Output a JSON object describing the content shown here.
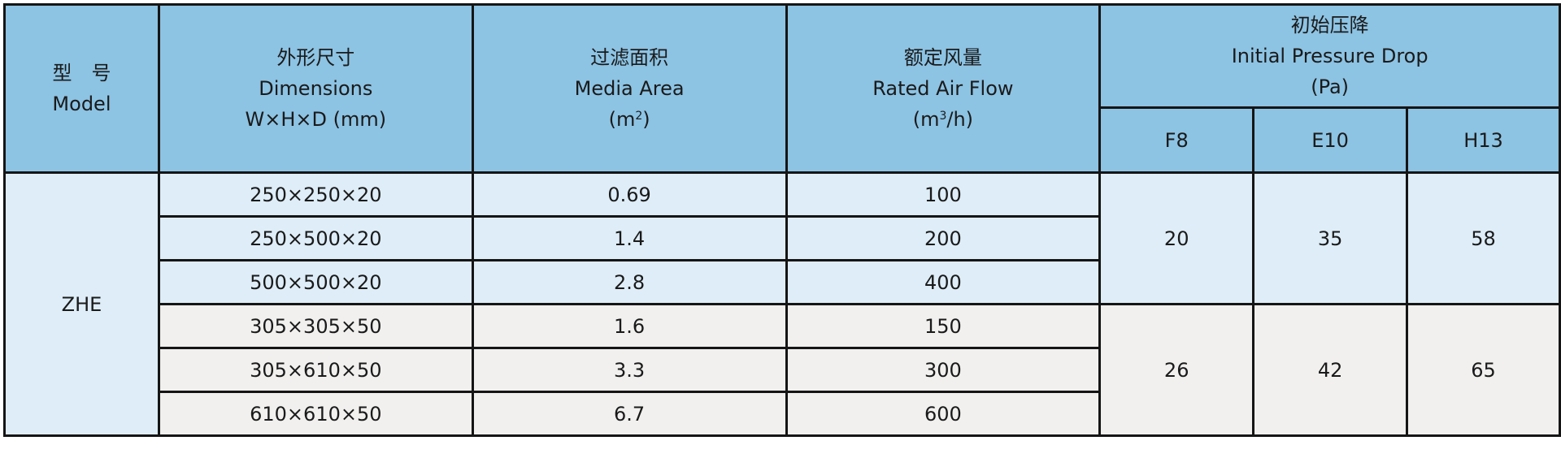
{
  "header": {
    "model": {
      "cn": "型　号",
      "en": "Model"
    },
    "dimensions": {
      "cn": "外形尺寸",
      "en": "Dimensions",
      "unit": "W×H×D (mm)"
    },
    "media_area": {
      "cn": "过滤面积",
      "en": "Media Area",
      "unit_pre": "(m",
      "unit_sup": "2",
      "unit_post": ")"
    },
    "air_flow": {
      "cn": "额定风量",
      "en": "Rated Air Flow",
      "unit_pre": "(m",
      "unit_sup": "3",
      "unit_post": "/h)"
    },
    "pressure_drop": {
      "cn": "初始压降",
      "en": "Initial Pressure Drop",
      "unit": "(Pa)"
    },
    "grades": [
      "F8",
      "E10",
      "H13"
    ]
  },
  "model_name": "ZHE",
  "groups": [
    {
      "rows": [
        {
          "dimensions": "250×250×20",
          "media_area": "0.69",
          "air_flow": "100"
        },
        {
          "dimensions": "250×500×20",
          "media_area": "1.4",
          "air_flow": "200"
        },
        {
          "dimensions": "500×500×20",
          "media_area": "2.8",
          "air_flow": "400"
        }
      ],
      "pressure": [
        "20",
        "35",
        "58"
      ]
    },
    {
      "rows": [
        {
          "dimensions": "305×305×50",
          "media_area": "1.6",
          "air_flow": "150"
        },
        {
          "dimensions": "305×610×50",
          "media_area": "3.3",
          "air_flow": "300"
        },
        {
          "dimensions": "610×610×50",
          "media_area": "6.7",
          "air_flow": "600"
        }
      ],
      "pressure": [
        "26",
        "42",
        "65"
      ]
    }
  ],
  "colors": {
    "header_bg": "#8dc3e3",
    "group1_bg": "#deedf8",
    "group2_bg": "#f1f0ef",
    "border": "#151515"
  }
}
